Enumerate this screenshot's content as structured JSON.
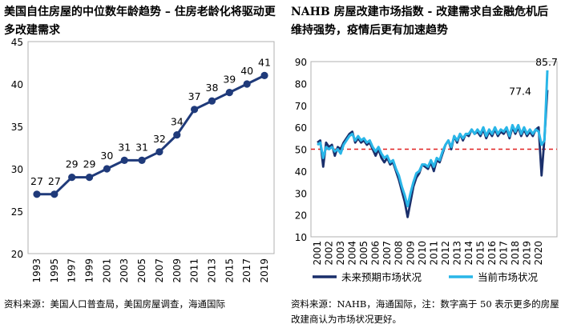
{
  "chart_data": [
    {
      "type": "line",
      "title": "美国自住房屋的中位数年龄趋势 – 住房老龄化将驱动更多改建需求",
      "x": [
        "1993",
        "1995",
        "1997",
        "1999",
        "2001",
        "2003",
        "2005",
        "2007",
        "2009",
        "2011",
        "2013",
        "2015",
        "2017",
        "2019"
      ],
      "values": [
        27,
        27,
        29,
        29,
        30,
        31,
        31,
        32,
        34,
        37,
        38,
        39,
        40,
        41
      ],
      "ylim": [
        20,
        45
      ],
      "yticks": [
        20,
        25,
        30,
        35,
        40,
        45
      ],
      "xlabel": "",
      "ylabel": "",
      "color": "#1f3a7a",
      "source": "资料来源：美国人口普查局，美国房屋调查，海通国际"
    },
    {
      "type": "line",
      "title": "NAHB 房屋改建市场指数 - 改建需求自金融危机后维持强势，疫情后更有加速趋势",
      "ylim": [
        10,
        90
      ],
      "yticks": [
        10,
        20,
        30,
        40,
        50,
        60,
        70,
        80,
        90
      ],
      "x_tick_labels": [
        "2001",
        "2002",
        "2003",
        "2004",
        "2005",
        "2006",
        "2007",
        "2008",
        "2009",
        "2010",
        "2011",
        "2012",
        "2013",
        "2014",
        "2015",
        "2016",
        "2017",
        "2018",
        "2019",
        "2020"
      ],
      "reference_line": 50,
      "annotations": [
        "85.7",
        "77.4"
      ],
      "legend": [
        "未来预期市场状况",
        "当前市场状况"
      ],
      "source": "资料来源：NAHB，海通国际，注：数字高于 50 表示更多的房屋改建商认为市场状况更好。",
      "series": [
        {
          "name": "未来预期市场状况",
          "color": "#1a2f6b",
          "x": [
            2001.0,
            2001.25,
            2001.5,
            2001.75,
            2002.0,
            2002.25,
            2002.5,
            2002.75,
            2003.0,
            2003.25,
            2003.5,
            2003.75,
            2004.0,
            2004.25,
            2004.5,
            2004.75,
            2005.0,
            2005.25,
            2005.5,
            2005.75,
            2006.0,
            2006.25,
            2006.5,
            2006.75,
            2007.0,
            2007.25,
            2007.5,
            2007.75,
            2008.0,
            2008.25,
            2008.5,
            2008.75,
            2009.0,
            2009.25,
            2009.5,
            2009.75,
            2010.0,
            2010.25,
            2010.5,
            2010.75,
            2011.0,
            2011.25,
            2011.5,
            2011.75,
            2012.0,
            2012.25,
            2012.5,
            2012.75,
            2013.0,
            2013.25,
            2013.5,
            2013.75,
            2014.0,
            2014.25,
            2014.5,
            2014.75,
            2015.0,
            2015.25,
            2015.5,
            2015.75,
            2016.0,
            2016.25,
            2016.5,
            2016.75,
            2017.0,
            2017.25,
            2017.5,
            2017.75,
            2018.0,
            2018.25,
            2018.5,
            2018.75,
            2019.0,
            2019.25,
            2019.5,
            2019.75,
            2020.0,
            2020.25,
            2020.5,
            2020.75
          ],
          "values": [
            53,
            54,
            42,
            53,
            51,
            52,
            47,
            51,
            50,
            53,
            55,
            57,
            58,
            53,
            55,
            53,
            54,
            52,
            53,
            50,
            47,
            50,
            46,
            44,
            46,
            43,
            44,
            40,
            36,
            31,
            26,
            19,
            26,
            33,
            37,
            39,
            43,
            42,
            41,
            44,
            40,
            45,
            44,
            48,
            52,
            54,
            50,
            56,
            53,
            57,
            54,
            57,
            56,
            59,
            57,
            58,
            56,
            59,
            55,
            58,
            56,
            59,
            56,
            58,
            57,
            59,
            55,
            60,
            57,
            60,
            56,
            59,
            56,
            58,
            56,
            59,
            60,
            38,
            55,
            77
          ]
        },
        {
          "name": "当前市场状况",
          "color": "#29b6e8",
          "x": [
            2001.0,
            2001.25,
            2001.5,
            2001.75,
            2002.0,
            2002.25,
            2002.5,
            2002.75,
            2003.0,
            2003.25,
            2003.5,
            2003.75,
            2004.0,
            2004.25,
            2004.5,
            2004.75,
            2005.0,
            2005.25,
            2005.5,
            2005.75,
            2006.0,
            2006.25,
            2006.5,
            2006.75,
            2007.0,
            2007.25,
            2007.5,
            2007.75,
            2008.0,
            2008.25,
            2008.5,
            2008.75,
            2009.0,
            2009.25,
            2009.5,
            2009.75,
            2010.0,
            2010.25,
            2010.5,
            2010.75,
            2011.0,
            2011.25,
            2011.5,
            2011.75,
            2012.0,
            2012.25,
            2012.5,
            2012.75,
            2013.0,
            2013.25,
            2013.5,
            2013.75,
            2014.0,
            2014.25,
            2014.5,
            2014.75,
            2015.0,
            2015.25,
            2015.5,
            2015.75,
            2016.0,
            2016.25,
            2016.5,
            2016.75,
            2017.0,
            2017.25,
            2017.5,
            2017.75,
            2018.0,
            2018.25,
            2018.5,
            2018.75,
            2019.0,
            2019.25,
            2019.5,
            2019.75,
            2020.0,
            2020.25,
            2020.5,
            2020.75
          ],
          "values": [
            52,
            53,
            46,
            51,
            50,
            51,
            49,
            50,
            48,
            52,
            54,
            56,
            57,
            54,
            56,
            54,
            55,
            53,
            54,
            51,
            49,
            51,
            48,
            46,
            47,
            44,
            45,
            41,
            38,
            33,
            29,
            24,
            30,
            35,
            39,
            40,
            43,
            43,
            42,
            45,
            42,
            46,
            45,
            49,
            52,
            54,
            51,
            56,
            54,
            57,
            55,
            57,
            57,
            59,
            57,
            59,
            57,
            60,
            56,
            59,
            57,
            60,
            57,
            59,
            58,
            60,
            56,
            61,
            58,
            61,
            57,
            60,
            57,
            59,
            57,
            59,
            58,
            52,
            54,
            86
          ]
        }
      ]
    }
  ]
}
